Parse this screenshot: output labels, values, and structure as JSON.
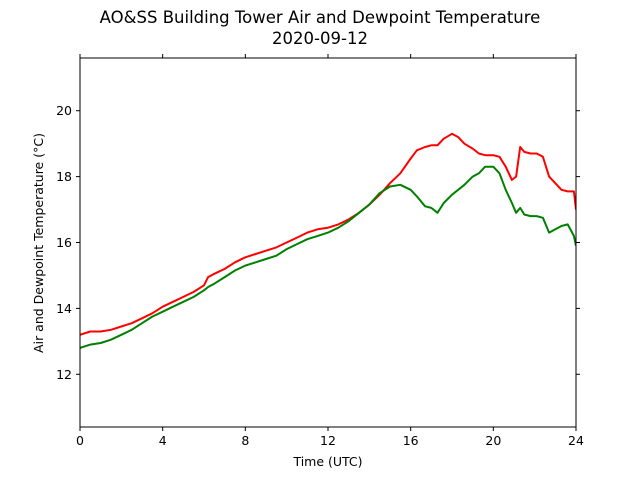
{
  "chart_data": {
    "type": "line",
    "title": "AO&SS Building Tower Air and Dewpoint Temperature",
    "subtitle": "2020-09-12",
    "xlabel": "Time (UTC)",
    "ylabel": "Air and Dewpoint Temperature (°C)",
    "xlim": [
      0,
      24
    ],
    "ylim": [
      10.4,
      21.6
    ],
    "xticks": [
      0,
      4,
      8,
      12,
      16,
      20,
      24
    ],
    "yticks": [
      12,
      14,
      16,
      18,
      20
    ],
    "grid": false,
    "legend": "none",
    "series": [
      {
        "color": "#ff0000",
        "x": [
          0,
          0.5,
          1,
          1.5,
          2,
          2.5,
          3,
          3.5,
          4,
          4.5,
          5,
          5.5,
          6,
          6.2,
          6.5,
          7,
          7.5,
          8,
          8.5,
          9,
          9.5,
          10,
          10.5,
          11,
          11.5,
          12,
          12.5,
          13,
          13.5,
          14,
          14.5,
          15,
          15.5,
          16,
          16.3,
          16.7,
          17,
          17.3,
          17.6,
          18,
          18.3,
          18.6,
          19,
          19.3,
          19.6,
          20,
          20.3,
          20.6,
          20.9,
          21.1,
          21.3,
          21.5,
          21.8,
          22.1,
          22.4,
          22.7,
          23,
          23.3,
          23.6,
          23.9,
          24
        ],
        "y": [
          13.2,
          13.3,
          13.3,
          13.35,
          13.45,
          13.55,
          13.7,
          13.85,
          14.05,
          14.2,
          14.35,
          14.5,
          14.7,
          14.95,
          15.05,
          15.2,
          15.4,
          15.55,
          15.65,
          15.75,
          15.85,
          16.0,
          16.15,
          16.3,
          16.4,
          16.45,
          16.55,
          16.7,
          16.9,
          17.15,
          17.45,
          17.8,
          18.1,
          18.55,
          18.8,
          18.9,
          18.95,
          18.95,
          19.15,
          19.3,
          19.2,
          19.0,
          18.85,
          18.7,
          18.65,
          18.65,
          18.6,
          18.3,
          17.9,
          18.0,
          18.9,
          18.75,
          18.7,
          18.7,
          18.6,
          18.0,
          17.8,
          17.6,
          17.55,
          17.55,
          17.0
        ]
      },
      {
        "color": "#008000",
        "x": [
          0,
          0.5,
          1,
          1.5,
          2,
          2.5,
          3,
          3.5,
          4,
          4.5,
          5,
          5.5,
          6,
          6.2,
          6.5,
          7,
          7.5,
          8,
          8.5,
          9,
          9.5,
          10,
          10.5,
          11,
          11.5,
          12,
          12.5,
          13,
          13.5,
          14,
          14.5,
          15,
          15.5,
          16,
          16.3,
          16.7,
          17,
          17.3,
          17.6,
          18,
          18.3,
          18.6,
          19,
          19.3,
          19.6,
          20,
          20.3,
          20.6,
          20.9,
          21.1,
          21.3,
          21.5,
          21.8,
          22.1,
          22.4,
          22.7,
          23,
          23.3,
          23.6,
          23.9,
          24
        ],
        "y": [
          12.8,
          12.9,
          12.95,
          13.05,
          13.2,
          13.35,
          13.55,
          13.75,
          13.9,
          14.05,
          14.2,
          14.35,
          14.55,
          14.65,
          14.75,
          14.95,
          15.15,
          15.3,
          15.4,
          15.5,
          15.6,
          15.8,
          15.95,
          16.1,
          16.2,
          16.3,
          16.45,
          16.65,
          16.9,
          17.15,
          17.5,
          17.7,
          17.75,
          17.6,
          17.4,
          17.1,
          17.05,
          16.9,
          17.2,
          17.45,
          17.6,
          17.75,
          18.0,
          18.1,
          18.3,
          18.3,
          18.1,
          17.6,
          17.2,
          16.9,
          17.05,
          16.85,
          16.8,
          16.8,
          16.75,
          16.3,
          16.4,
          16.5,
          16.55,
          16.2,
          15.9
        ]
      }
    ]
  }
}
